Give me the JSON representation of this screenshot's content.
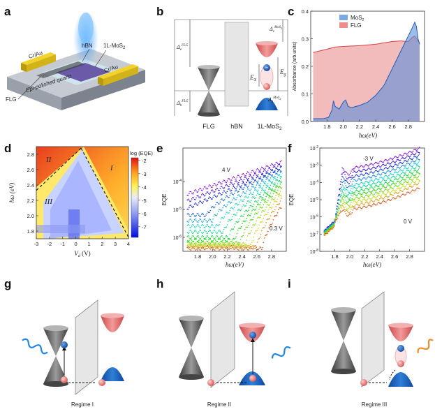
{
  "panel_labels": [
    "a",
    "b",
    "c",
    "d",
    "e",
    "f",
    "g",
    "h",
    "i"
  ],
  "panel_a": {
    "electrode_left": "Cr/Au",
    "electrode_right": "Cr/Au",
    "hbn": "hBN",
    "mos2": "1L-MoS",
    "mos2_sub": "2",
    "substrate": "Epi-polished quartz",
    "flg": "FLG"
  },
  "panel_b": {
    "labels": [
      "FLG",
      "hBN",
      "1L-MoS"
    ],
    "mos2_sub": "2",
    "delta_e_flg": "Δ",
    "delta_e_flg_sub": "e",
    "delta_e_flg_sup": "FLG",
    "delta_h_flg": "Δ",
    "delta_h_flg_sub": "h",
    "delta_h_flg_sup": "FLG",
    "delta_e_mos2": "Δ",
    "delta_e_mos2_sub": "e",
    "delta_e_mos2_sup": "MoS",
    "delta_h_mos2": "Δ",
    "delta_h_mos2_sub": "h",
    "delta_h_mos2_sup": "MoS",
    "ex": "E",
    "ex_sub": "X",
    "eg": "E",
    "eg_sub": "g"
  },
  "panel_c": {
    "chart_data": {
      "type": "area",
      "xlabel": "ħω(eV)",
      "ylabel": "Absorbance (arb.units)",
      "xlim": [
        1.6,
        3.0
      ],
      "ylim": [
        0.0,
        0.4
      ],
      "xticks": [
        "1.8",
        "2.0",
        "2.2",
        "2.4",
        "2.6",
        "2.8"
      ],
      "yticks": [
        "0.0",
        "0.1",
        "0.2",
        "0.3",
        "0.4"
      ],
      "legend": [
        "MoS",
        "FLG"
      ],
      "legend_sub": "2",
      "series": [
        {
          "name": "MoS2",
          "color": "#5b8fd9",
          "x": [
            1.63,
            1.75,
            1.82,
            1.86,
            1.88,
            1.9,
            1.95,
            2.0,
            2.03,
            2.06,
            2.1,
            2.2,
            2.3,
            2.4,
            2.5,
            2.6,
            2.7,
            2.75,
            2.8,
            2.85,
            2.88,
            2.9,
            2.92,
            2.94
          ],
          "values": [
            0.01,
            0.01,
            0.015,
            0.04,
            0.075,
            0.055,
            0.045,
            0.07,
            0.078,
            0.055,
            0.05,
            0.058,
            0.07,
            0.095,
            0.13,
            0.19,
            0.25,
            0.28,
            0.31,
            0.34,
            0.36,
            0.345,
            0.3,
            0.28
          ]
        },
        {
          "name": "FLG",
          "color": "#e98585",
          "x": [
            1.63,
            1.7,
            1.8,
            1.9,
            2.0,
            2.2,
            2.4,
            2.6,
            2.7,
            2.8,
            2.85,
            2.88,
            2.9,
            2.94
          ],
          "values": [
            0.25,
            0.255,
            0.262,
            0.27,
            0.272,
            0.275,
            0.28,
            0.29,
            0.292,
            0.29,
            0.305,
            0.31,
            0.3,
            0.285
          ]
        }
      ]
    }
  },
  "panel_d": {
    "chart_data": {
      "type": "heatmap",
      "xlabel": "V",
      "xlabel_sub": "d",
      "xlabel_unit": " (V)",
      "ylabel": "ħω (eV)",
      "xlim": [
        -3,
        4
      ],
      "ylim": [
        1.7,
        2.9
      ],
      "xticks": [
        "-3",
        "-2",
        "-1",
        "0",
        "1",
        "2",
        "3",
        "4"
      ],
      "yticks": [
        "1.8",
        "2.0",
        "2.2",
        "2.4",
        "2.6",
        "2.8"
      ],
      "colorbar_title": "log (EQE)",
      "colorbar_ticks": [
        "-2",
        "-3",
        "-4",
        "-5",
        "-6",
        "-7"
      ],
      "colorbar_range": [
        -7.8,
        -1.8
      ],
      "regions": [
        "I",
        "II",
        "III"
      ],
      "boundary_lines": [
        {
          "x": [
            -3,
            0.4
          ],
          "y": [
            2.33,
            2.88
          ]
        },
        {
          "x": [
            0.4,
            4
          ],
          "y": [
            2.88,
            1.72
          ]
        }
      ]
    }
  },
  "panel_e": {
    "chart_data": {
      "type": "scatter",
      "xlabel": "ħω(eV)",
      "ylabel": "EQE",
      "xlim": [
        1.6,
        3.0
      ],
      "ylim_log10": [
        -6.5,
        -2.8
      ],
      "xticks": [
        "1.8",
        "2.0",
        "2.2",
        "2.4",
        "2.6",
        "2.8"
      ],
      "yticks": [
        "10",
        "10",
        "10"
      ],
      "ytick_exp": [
        "-6",
        "-5",
        "-4"
      ],
      "label_top": "4 V",
      "label_bottom": "0.3 V",
      "series_count": 14,
      "log_eqe_at_1_7eV": [
        -4.45,
        -4.7,
        -4.95,
        -5.2,
        -5.4,
        -5.6,
        -5.8,
        -6.0,
        -6.1,
        -6.2,
        -6.25,
        -6.3,
        -6.35,
        -6.4
      ],
      "log_eqe_at_2_9eV": [
        -3.3,
        -3.4,
        -3.5,
        -3.6,
        -3.7,
        -3.8,
        -3.9,
        -4.0,
        -4.1,
        -4.2,
        -4.35,
        -4.5,
        -4.7,
        -4.95
      ]
    }
  },
  "panel_f": {
    "chart_data": {
      "type": "scatter",
      "xlabel": "ħω(eV)",
      "ylabel": "EQE",
      "xlim": [
        1.6,
        3.0
      ],
      "ylim_log10": [
        -8,
        -2
      ],
      "xticks": [
        "1.8",
        "2.0",
        "2.2",
        "2.4",
        "2.6",
        "2.8"
      ],
      "yticks": [
        "10",
        "10",
        "10",
        "10",
        "10",
        "10",
        "10"
      ],
      "ytick_exp": [
        "-8",
        "-7",
        "-6",
        "-5",
        "-4",
        "-3",
        "-2"
      ],
      "label_top": "-3 V",
      "label_bottom": "0 V",
      "series_count": 12,
      "log_eqe_plateau": [
        -3.2,
        -3.45,
        -3.7,
        -3.95,
        -4.2,
        -4.4,
        -4.6,
        -4.8,
        -5.0,
        -5.2,
        -5.4,
        -5.6
      ],
      "log_eqe_at_2_9eV": [
        -2.0,
        -2.2,
        -2.4,
        -2.6,
        -2.8,
        -3.0,
        -3.2,
        -3.4,
        -3.6,
        -3.8,
        -4.0,
        -4.3
      ]
    }
  },
  "regimes": [
    "Regime I",
    "Regime II",
    "Regime III"
  ],
  "colors": {
    "electron": "#1565c0",
    "hole": "#e57373",
    "cone": "#6d6d6d",
    "cb": "#e85d5d",
    "vb": "#1565c0",
    "wave_blue": "#1e88e5",
    "wave_orange": "#f08a24"
  }
}
